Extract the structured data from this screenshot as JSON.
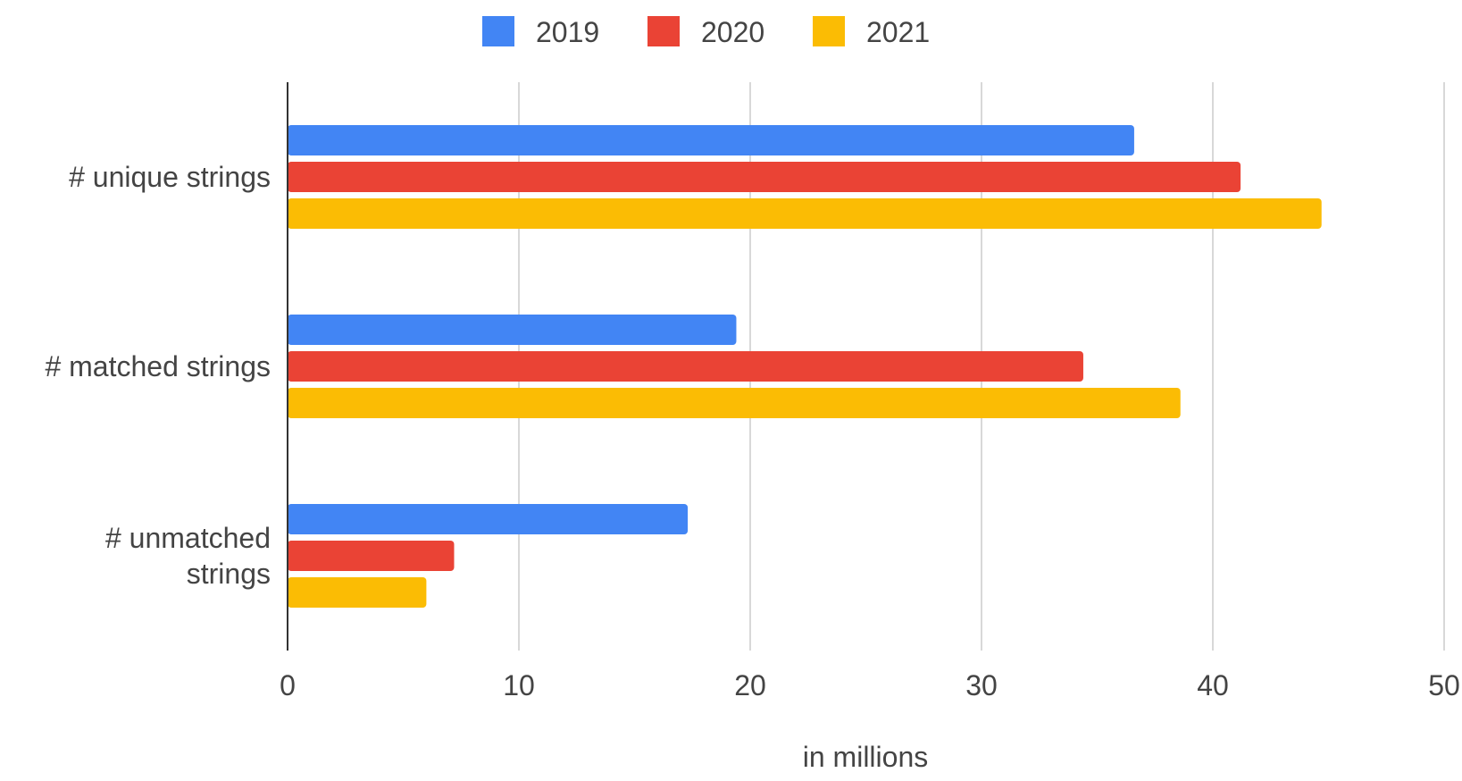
{
  "chart_data": {
    "type": "bar",
    "orientation": "horizontal",
    "title": "",
    "categories": [
      "# unique strings",
      "# matched strings",
      "# unmatched strings"
    ],
    "category_label_lines": [
      [
        "# unique strings"
      ],
      [
        "# matched strings"
      ],
      [
        "# unmatched",
        "strings"
      ]
    ],
    "series": [
      {
        "name": "2019",
        "color": "#4285F4",
        "values": [
          36.6,
          19.4,
          17.3
        ]
      },
      {
        "name": "2020",
        "color": "#EA4335",
        "values": [
          41.2,
          34.4,
          7.2
        ]
      },
      {
        "name": "2021",
        "color": "#FBBC04",
        "values": [
          44.7,
          38.6,
          6.0
        ]
      }
    ],
    "xlabel": "in millions",
    "ylabel": "",
    "xlim": [
      0,
      50
    ],
    "xticks": [
      "0",
      "10",
      "20",
      "30",
      "40",
      "50"
    ],
    "grid": true,
    "legend_position": "top-center"
  }
}
